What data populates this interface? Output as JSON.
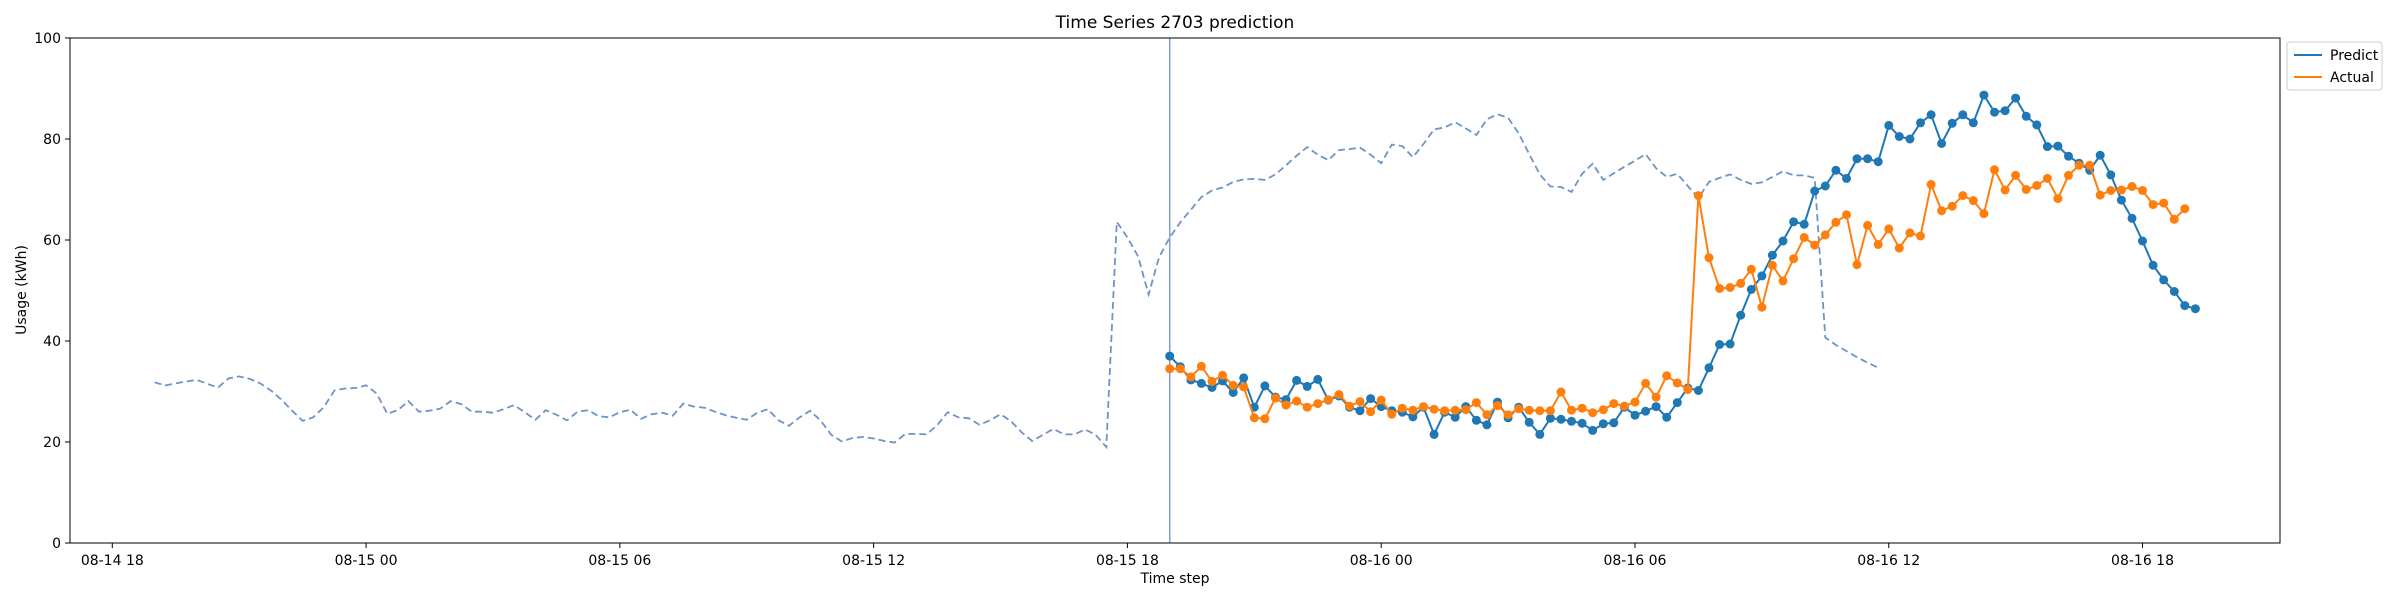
{
  "chart_data": {
    "type": "line",
    "title": "Time Series 2703 prediction",
    "xlabel": "Time step",
    "ylabel": "Usage (kWh)",
    "xlim": [
      "2024-08-14 17:00",
      "2024-08-16 21:15"
    ],
    "ylim": [
      0,
      100
    ],
    "yticks": [
      0,
      20,
      40,
      60,
      80,
      100
    ],
    "xticks": [
      {
        "t": "2024-08-14 18:00",
        "label": "08-14 18"
      },
      {
        "t": "2024-08-15 00:00",
        "label": "08-15 00"
      },
      {
        "t": "2024-08-15 06:00",
        "label": "08-15 06"
      },
      {
        "t": "2024-08-15 12:00",
        "label": "08-15 12"
      },
      {
        "t": "2024-08-15 18:00",
        "label": "08-15 18"
      },
      {
        "t": "2024-08-16 00:00",
        "label": "08-16 00"
      },
      {
        "t": "2024-08-16 06:00",
        "label": "08-16 06"
      },
      {
        "t": "2024-08-16 12:00",
        "label": "08-16 12"
      },
      {
        "t": "2024-08-16 18:00",
        "label": "08-16 18"
      }
    ],
    "x_step": "15min",
    "grid": false,
    "legend_position": "top-right",
    "forecast_start": "2024-08-15 19:00",
    "history": {
      "x_start": "2024-08-14 19:00",
      "line_style": "dashed",
      "color": "#6f93c6",
      "values": [
        31.8,
        31.2,
        31.6,
        32.0,
        32.3,
        31.5,
        30.8,
        32.6,
        33.0,
        32.5,
        31.6,
        30.2,
        28.4,
        26.2,
        24.2,
        24.9,
        26.9,
        30.2,
        30.6,
        30.7,
        31.2,
        29.6,
        25.6,
        26.3,
        28.1,
        26.0,
        26.2,
        26.6,
        28.1,
        27.5,
        26.0,
        26.0,
        25.8,
        26.5,
        27.3,
        25.9,
        24.4,
        26.3,
        25.4,
        24.3,
        26.0,
        26.3,
        25.1,
        24.9,
        25.9,
        26.4,
        24.6,
        25.5,
        25.8,
        25.2,
        27.6,
        27.0,
        26.8,
        26.0,
        25.3,
        24.8,
        24.4,
        25.8,
        26.5,
        24.3,
        23.2,
        24.9,
        26.2,
        24.2,
        21.4,
        20.1,
        20.8,
        21.0,
        20.7,
        20.2,
        19.9,
        21.6,
        21.6,
        21.5,
        23.3,
        25.9,
        24.9,
        24.7,
        23.4,
        24.3,
        25.5,
        24.1,
        21.9,
        20.2,
        21.4,
        22.6,
        21.5,
        21.5,
        22.5,
        21.4,
        19.0,
        63.6,
        60.5,
        56.8,
        49.2,
        56.6,
        60.5,
        63.5,
        66.0,
        68.5,
        69.8,
        70.4,
        71.5,
        72.0,
        72.1,
        71.9,
        73.0,
        74.8,
        76.7,
        78.4,
        76.9,
        75.8,
        77.8,
        78.0,
        78.3,
        76.9,
        75.2,
        78.9,
        78.6,
        76.4,
        79.0,
        81.9,
        82.3,
        83.3,
        82.1,
        80.8,
        83.9,
        84.9,
        84.2,
        81.1,
        77.0,
        73.0,
        70.6,
        70.5,
        69.5,
        73.1,
        75.1,
        71.9,
        73.2,
        74.5,
        75.7,
        77.0,
        74.2,
        72.5,
        73.1,
        70.7,
        68.3,
        71.5,
        72.3,
        73.0,
        71.9,
        71.1,
        71.4,
        72.5,
        73.6,
        72.8,
        72.8,
        72.3,
        40.7,
        39.2,
        38.0,
        36.8,
        35.7,
        34.7
      ]
    },
    "series": [
      {
        "name": "Predict",
        "color": "#1f77b4",
        "x_start": "2024-08-15 19:00",
        "values": [
          37.0,
          34.9,
          32.3,
          31.6,
          30.8,
          32.1,
          29.8,
          32.7,
          26.9,
          31.1,
          28.9,
          28.4,
          32.2,
          31.0,
          32.4,
          28.3,
          29.1,
          26.9,
          26.2,
          28.6,
          27.0,
          26.2,
          25.9,
          25.0,
          26.9,
          21.5,
          25.9,
          24.9,
          27.0,
          24.3,
          23.4,
          27.9,
          24.8,
          26.9,
          23.9,
          21.5,
          24.7,
          24.5,
          24.1,
          23.7,
          22.3,
          23.6,
          23.8,
          26.9,
          25.3,
          26.1,
          27.0,
          24.9,
          27.8,
          30.7,
          30.2,
          34.7,
          39.3,
          39.4,
          45.1,
          50.2,
          52.9,
          57.0,
          59.8,
          63.6,
          63.1,
          69.7,
          70.7,
          73.8,
          72.2,
          76.1,
          76.1,
          75.5,
          82.7,
          80.5,
          80.0,
          83.2,
          84.8,
          79.1,
          83.1,
          84.8,
          83.2,
          88.7,
          85.3,
          85.6,
          88.1,
          84.5,
          82.8,
          78.5,
          78.6,
          76.6,
          75.2,
          73.8,
          76.8,
          72.9,
          67.9,
          64.3,
          59.8,
          55.0,
          52.1,
          49.8,
          47.0,
          46.4
        ]
      },
      {
        "name": "Actual",
        "color": "#ff7f0e",
        "x_start": "2024-08-15 19:00",
        "values": [
          34.5,
          34.5,
          32.9,
          35.0,
          32.0,
          33.2,
          31.2,
          30.9,
          24.8,
          24.6,
          28.7,
          27.3,
          28.1,
          26.9,
          27.6,
          28.4,
          29.4,
          27.1,
          28.0,
          26.0,
          28.3,
          25.5,
          26.7,
          26.3,
          27.0,
          26.5,
          26.2,
          26.3,
          26.4,
          27.8,
          25.4,
          27.2,
          25.4,
          26.6,
          26.3,
          26.2,
          26.2,
          29.9,
          26.3,
          26.7,
          25.8,
          26.4,
          27.6,
          27.1,
          27.9,
          31.6,
          28.9,
          33.1,
          31.7,
          30.4,
          68.8,
          56.5,
          50.4,
          50.6,
          51.4,
          54.2,
          46.7,
          55.0,
          51.9,
          56.3,
          60.5,
          59.0,
          61.0,
          63.5,
          65.0,
          55.1,
          62.9,
          59.1,
          62.2,
          58.4,
          61.4,
          60.8,
          71.0,
          65.8,
          66.7,
          68.8,
          67.8,
          65.2,
          73.9,
          69.9,
          72.8,
          70.0,
          70.8,
          72.2,
          68.2,
          72.8,
          74.8,
          74.8,
          68.9,
          69.8,
          69.9,
          70.6,
          69.8,
          67.0,
          67.3,
          64.1,
          66.2
        ]
      }
    ]
  }
}
